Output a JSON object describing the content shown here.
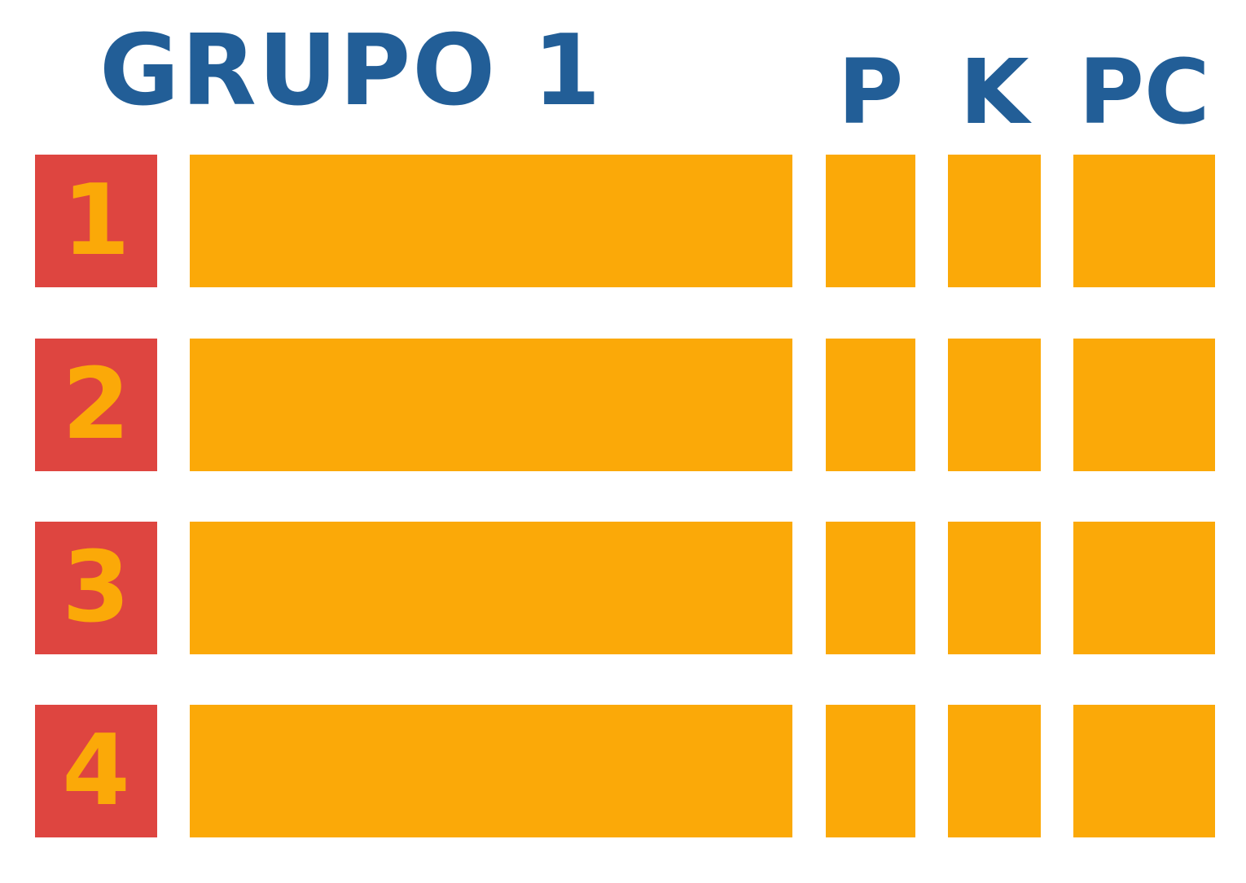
{
  "title": "GRUPO 1",
  "column_headers": {
    "p": "P",
    "k": "K",
    "pc": "PC"
  },
  "rows": [
    {
      "number": "1"
    },
    {
      "number": "2"
    },
    {
      "number": "3"
    },
    {
      "number": "4"
    }
  ],
  "colors": {
    "header_text": "#225e97",
    "number_box": "#de4540",
    "cell_fill": "#fba908"
  }
}
